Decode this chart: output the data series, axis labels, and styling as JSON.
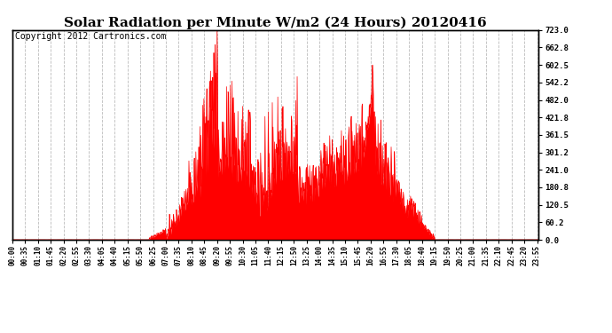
{
  "title": "Solar Radiation per Minute W/m2 (24 Hours) 20120416",
  "copyright": "Copyright 2012 Cartronics.com",
  "y_min": 0.0,
  "y_max": 723.0,
  "y_ticks": [
    0.0,
    60.2,
    120.5,
    180.8,
    241.0,
    301.2,
    361.5,
    421.8,
    482.0,
    542.2,
    602.5,
    662.8,
    723.0
  ],
  "fill_color": "#ff0000",
  "line_color": "#ff0000",
  "bg_color": "#ffffff",
  "grid_color": "#bbbbbb",
  "dashed_line_color": "#ff0000",
  "title_fontsize": 11,
  "copyright_fontsize": 7,
  "x_tick_interval": 35
}
